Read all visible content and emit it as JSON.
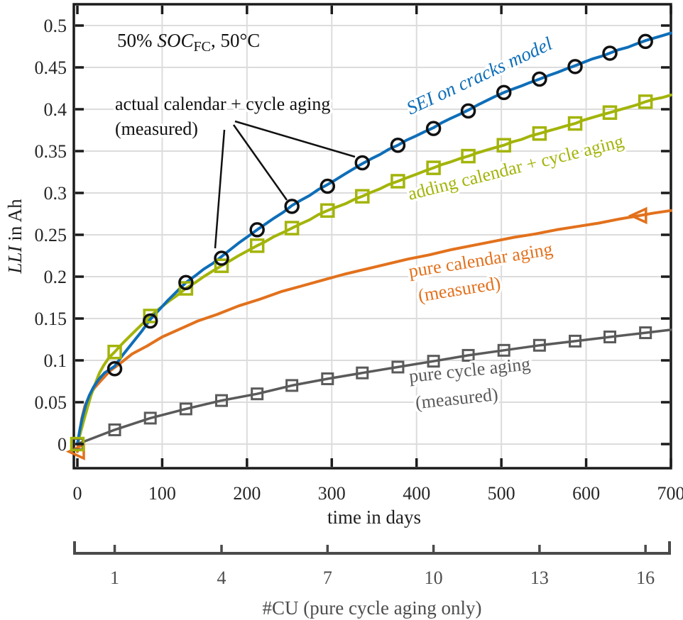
{
  "labels": {
    "condition": {
      "prefix": "50%",
      "soc": "SOC",
      "sub": "FC",
      "suffix": ", 50°C"
    },
    "annotation": {
      "line1": "actual calendar + cycle aging",
      "line2": "(measured)"
    },
    "sei": "SEI on cracks model",
    "adding": "adding calendar + cycle aging",
    "calendar": {
      "line1": "pure calendar aging",
      "line2": "(measured)"
    },
    "cycle": {
      "line1": "pure cycle aging",
      "line2": "(measured)"
    }
  },
  "axes": {
    "x": {
      "label": "time in days",
      "tick_values": [
        0,
        100,
        200,
        300,
        400,
        500,
        600,
        700
      ],
      "grid_values": [
        100,
        200,
        300,
        400,
        500,
        600
      ],
      "range": [
        -5,
        700
      ]
    },
    "y": {
      "label_italic": "LLI",
      "label_rest": "in Ah",
      "tick_values": [
        0,
        0.05,
        0.1,
        0.15,
        0.2,
        0.25,
        0.3,
        0.35,
        0.4,
        0.45,
        0.5
      ],
      "tick_labels": [
        "0",
        "0.05",
        "0.1",
        "0.15",
        "0.2",
        "0.25",
        "0.3",
        "0.35",
        "0.4",
        "0.45",
        "0.5"
      ],
      "range": [
        -0.03,
        0.527
      ]
    },
    "cu": {
      "label": "#CU (pure cycle aging only)",
      "tick_labels": [
        "1",
        "4",
        "7",
        "10",
        "13",
        "16"
      ],
      "tick_days": [
        44,
        170,
        295,
        420,
        545,
        670
      ]
    }
  },
  "colors": {
    "blue": "#0e6eb8",
    "green": "#a3b40a",
    "orange": "#e2711c",
    "gray": "#5a5a5a",
    "black": "#111111",
    "grid": "#dcdcdc",
    "spine": "#1b1b1b",
    "cu_axis": "#4a4a4a"
  },
  "chart_data": {
    "type": "line",
    "xlabel": "time in days",
    "ylabel": "LLI in Ah",
    "xlim": [
      -5,
      700
    ],
    "ylim": [
      -0.03,
      0.527
    ],
    "grid": true,
    "secondary_x_axis": {
      "label": "#CU (pure cycle aging only)",
      "ticks": [
        1,
        4,
        7,
        10,
        13,
        16
      ],
      "tick_days": [
        44,
        170,
        295,
        420,
        545,
        670
      ]
    },
    "series": [
      {
        "name": "pure-calendar-aging-measured",
        "label": "pure calendar aging (measured)",
        "color": "#e2711c",
        "line_width": 4,
        "marker": "triangle-left",
        "marker_size": 21,
        "line": [
          [
            0,
            -0.009
          ],
          [
            2,
            0.01
          ],
          [
            5,
            0.03
          ],
          [
            9,
            0.046
          ],
          [
            14,
            0.057
          ],
          [
            20,
            0.067
          ],
          [
            28,
            0.076
          ],
          [
            38,
            0.087
          ],
          [
            50,
            0.096
          ],
          [
            65,
            0.108
          ],
          [
            82,
            0.117
          ],
          [
            100,
            0.128
          ],
          [
            120,
            0.137
          ],
          [
            142,
            0.147
          ],
          [
            165,
            0.155
          ],
          [
            190,
            0.165
          ],
          [
            215,
            0.173
          ],
          [
            240,
            0.182
          ],
          [
            265,
            0.189
          ],
          [
            290,
            0.196
          ],
          [
            315,
            0.203
          ],
          [
            340,
            0.209
          ],
          [
            365,
            0.215
          ],
          [
            390,
            0.221
          ],
          [
            415,
            0.226
          ],
          [
            440,
            0.232
          ],
          [
            465,
            0.237
          ],
          [
            490,
            0.242
          ],
          [
            515,
            0.247
          ],
          [
            540,
            0.251
          ],
          [
            565,
            0.256
          ],
          [
            590,
            0.26
          ],
          [
            615,
            0.264
          ],
          [
            640,
            0.269
          ],
          [
            663,
            0.273
          ],
          [
            680,
            0.276
          ],
          [
            700,
            0.279
          ]
        ],
        "markers": [
          [
            0,
            -0.009
          ],
          [
            663,
            0.273
          ]
        ]
      },
      {
        "name": "pure-cycle-aging-measured",
        "label": "pure cycle aging (measured)",
        "color": "#5a5a5a",
        "line_width": 3.5,
        "marker": "square",
        "marker_size": 15,
        "line": [
          [
            0,
            0
          ],
          [
            44,
            0.017
          ],
          [
            86,
            0.031
          ],
          [
            128,
            0.042
          ],
          [
            170,
            0.052
          ],
          [
            212,
            0.06
          ],
          [
            253,
            0.07
          ],
          [
            295,
            0.078
          ],
          [
            336,
            0.085
          ],
          [
            378,
            0.092
          ],
          [
            420,
            0.099
          ],
          [
            461,
            0.106
          ],
          [
            503,
            0.112
          ],
          [
            545,
            0.118
          ],
          [
            587,
            0.123
          ],
          [
            628,
            0.128
          ],
          [
            670,
            0.133
          ],
          [
            700,
            0.1365
          ]
        ],
        "markers": [
          [
            0,
            0
          ],
          [
            44,
            0.017
          ],
          [
            86,
            0.031
          ],
          [
            128,
            0.042
          ],
          [
            170,
            0.052
          ],
          [
            212,
            0.06
          ],
          [
            253,
            0.07
          ],
          [
            295,
            0.078
          ],
          [
            336,
            0.085
          ],
          [
            378,
            0.092
          ],
          [
            420,
            0.099
          ],
          [
            461,
            0.106
          ],
          [
            503,
            0.112
          ],
          [
            545,
            0.118
          ],
          [
            587,
            0.123
          ],
          [
            628,
            0.128
          ],
          [
            670,
            0.133
          ]
        ]
      },
      {
        "name": "adding-calendar-plus-cycle-aging",
        "label": "adding calendar + cycle aging",
        "color": "#a3b40a",
        "line_width": 4,
        "marker": "square",
        "marker_size": 17,
        "line": [
          [
            0,
            0
          ],
          [
            4,
            0.015
          ],
          [
            8,
            0.03
          ],
          [
            12,
            0.044
          ],
          [
            16,
            0.058
          ],
          [
            21,
            0.072
          ],
          [
            26,
            0.085
          ],
          [
            31,
            0.094
          ],
          [
            37,
            0.103
          ],
          [
            44,
            0.11
          ],
          [
            54,
            0.121
          ],
          [
            65,
            0.132
          ],
          [
            76,
            0.143
          ],
          [
            86,
            0.153
          ],
          [
            97,
            0.162
          ],
          [
            107,
            0.17
          ],
          [
            118,
            0.178
          ],
          [
            128,
            0.186
          ],
          [
            139,
            0.193
          ],
          [
            149,
            0.2
          ],
          [
            160,
            0.207
          ],
          [
            170,
            0.213
          ],
          [
            180,
            0.219
          ],
          [
            190,
            0.225
          ],
          [
            201,
            0.231
          ],
          [
            212,
            0.237
          ],
          [
            222,
            0.242
          ],
          [
            232,
            0.248
          ],
          [
            243,
            0.253
          ],
          [
            253,
            0.258
          ],
          [
            263,
            0.263
          ],
          [
            274,
            0.268
          ],
          [
            284,
            0.274
          ],
          [
            295,
            0.279
          ],
          [
            305,
            0.283
          ],
          [
            316,
            0.287
          ],
          [
            326,
            0.292
          ],
          [
            336,
            0.296
          ],
          [
            347,
            0.301
          ],
          [
            357,
            0.305
          ],
          [
            367,
            0.31
          ],
          [
            378,
            0.314
          ],
          [
            388,
            0.318
          ],
          [
            399,
            0.322
          ],
          [
            409,
            0.326
          ],
          [
            420,
            0.33
          ],
          [
            430,
            0.334
          ],
          [
            440,
            0.337
          ],
          [
            451,
            0.341
          ],
          [
            461,
            0.344
          ],
          [
            472,
            0.348
          ],
          [
            482,
            0.351
          ],
          [
            492,
            0.354
          ],
          [
            503,
            0.357
          ],
          [
            513,
            0.361
          ],
          [
            524,
            0.364
          ],
          [
            534,
            0.368
          ],
          [
            545,
            0.371
          ],
          [
            555,
            0.374
          ],
          [
            566,
            0.377
          ],
          [
            576,
            0.38
          ],
          [
            587,
            0.383
          ],
          [
            597,
            0.387
          ],
          [
            607,
            0.39
          ],
          [
            617,
            0.393
          ],
          [
            628,
            0.396
          ],
          [
            638,
            0.399
          ],
          [
            649,
            0.402
          ],
          [
            659,
            0.405
          ],
          [
            670,
            0.409
          ],
          [
            680,
            0.412
          ],
          [
            690,
            0.414
          ],
          [
            700,
            0.417
          ]
        ],
        "markers": [
          [
            0,
            0
          ],
          [
            44,
            0.11
          ],
          [
            86,
            0.153
          ],
          [
            128,
            0.186
          ],
          [
            170,
            0.213
          ],
          [
            212,
            0.237
          ],
          [
            253,
            0.258
          ],
          [
            295,
            0.279
          ],
          [
            336,
            0.296
          ],
          [
            378,
            0.314
          ],
          [
            420,
            0.33
          ],
          [
            461,
            0.344
          ],
          [
            503,
            0.357
          ],
          [
            545,
            0.371
          ],
          [
            587,
            0.383
          ],
          [
            628,
            0.396
          ],
          [
            670,
            0.409
          ]
        ]
      },
      {
        "name": "sei-on-cracks-model",
        "label": "SEI on cracks model",
        "color": "#0e6eb8",
        "line_width": 4,
        "marker": "none",
        "marker_size": 0,
        "line": [
          [
            0,
            0
          ],
          [
            3,
            0.018
          ],
          [
            6,
            0.032
          ],
          [
            10,
            0.047
          ],
          [
            14,
            0.058
          ],
          [
            19,
            0.068
          ],
          [
            25,
            0.077
          ],
          [
            32,
            0.085
          ],
          [
            38,
            0.089
          ],
          [
            44,
            0.093
          ],
          [
            54,
            0.107
          ],
          [
            65,
            0.121
          ],
          [
            76,
            0.135
          ],
          [
            86,
            0.149
          ],
          [
            97,
            0.161
          ],
          [
            107,
            0.172
          ],
          [
            118,
            0.183
          ],
          [
            128,
            0.193
          ],
          [
            139,
            0.201
          ],
          [
            149,
            0.209
          ],
          [
            160,
            0.216
          ],
          [
            170,
            0.224
          ],
          [
            180,
            0.232
          ],
          [
            190,
            0.24
          ],
          [
            201,
            0.248
          ],
          [
            212,
            0.256
          ],
          [
            222,
            0.263
          ],
          [
            232,
            0.27
          ],
          [
            243,
            0.277
          ],
          [
            253,
            0.285
          ],
          [
            263,
            0.291
          ],
          [
            274,
            0.297
          ],
          [
            284,
            0.304
          ],
          [
            295,
            0.31
          ],
          [
            305,
            0.316
          ],
          [
            316,
            0.323
          ],
          [
            326,
            0.329
          ],
          [
            336,
            0.335
          ],
          [
            347,
            0.341
          ],
          [
            357,
            0.346
          ],
          [
            367,
            0.352
          ],
          [
            378,
            0.357
          ],
          [
            388,
            0.363
          ],
          [
            399,
            0.368
          ],
          [
            409,
            0.373
          ],
          [
            420,
            0.378
          ],
          [
            430,
            0.384
          ],
          [
            440,
            0.389
          ],
          [
            451,
            0.394
          ],
          [
            461,
            0.399
          ],
          [
            472,
            0.405
          ],
          [
            482,
            0.41
          ],
          [
            492,
            0.415
          ],
          [
            503,
            0.42
          ],
          [
            513,
            0.424
          ],
          [
            524,
            0.428
          ],
          [
            534,
            0.432
          ],
          [
            545,
            0.436
          ],
          [
            555,
            0.44
          ],
          [
            566,
            0.444
          ],
          [
            576,
            0.448
          ],
          [
            587,
            0.452
          ],
          [
            597,
            0.456
          ],
          [
            607,
            0.46
          ],
          [
            617,
            0.463
          ],
          [
            628,
            0.467
          ],
          [
            638,
            0.471
          ],
          [
            649,
            0.474
          ],
          [
            659,
            0.478
          ],
          [
            670,
            0.482
          ],
          [
            680,
            0.485
          ],
          [
            690,
            0.488
          ],
          [
            700,
            0.491
          ]
        ],
        "markers": []
      },
      {
        "name": "actual-calendar-plus-cycle-aging-measured",
        "label": "actual calendar + cycle aging (measured)",
        "color": "#111111",
        "line_width": 0,
        "marker": "circle",
        "marker_size": 18,
        "line": [],
        "markers": [
          [
            44,
            0.09
          ],
          [
            86,
            0.147
          ],
          [
            128,
            0.193
          ],
          [
            170,
            0.222
          ],
          [
            212,
            0.256
          ],
          [
            253,
            0.284
          ],
          [
            295,
            0.308
          ],
          [
            336,
            0.336
          ],
          [
            378,
            0.357
          ],
          [
            420,
            0.377
          ],
          [
            461,
            0.398
          ],
          [
            503,
            0.42
          ],
          [
            545,
            0.436
          ],
          [
            587,
            0.451
          ],
          [
            628,
            0.467
          ],
          [
            670,
            0.481
          ]
        ]
      }
    ]
  }
}
